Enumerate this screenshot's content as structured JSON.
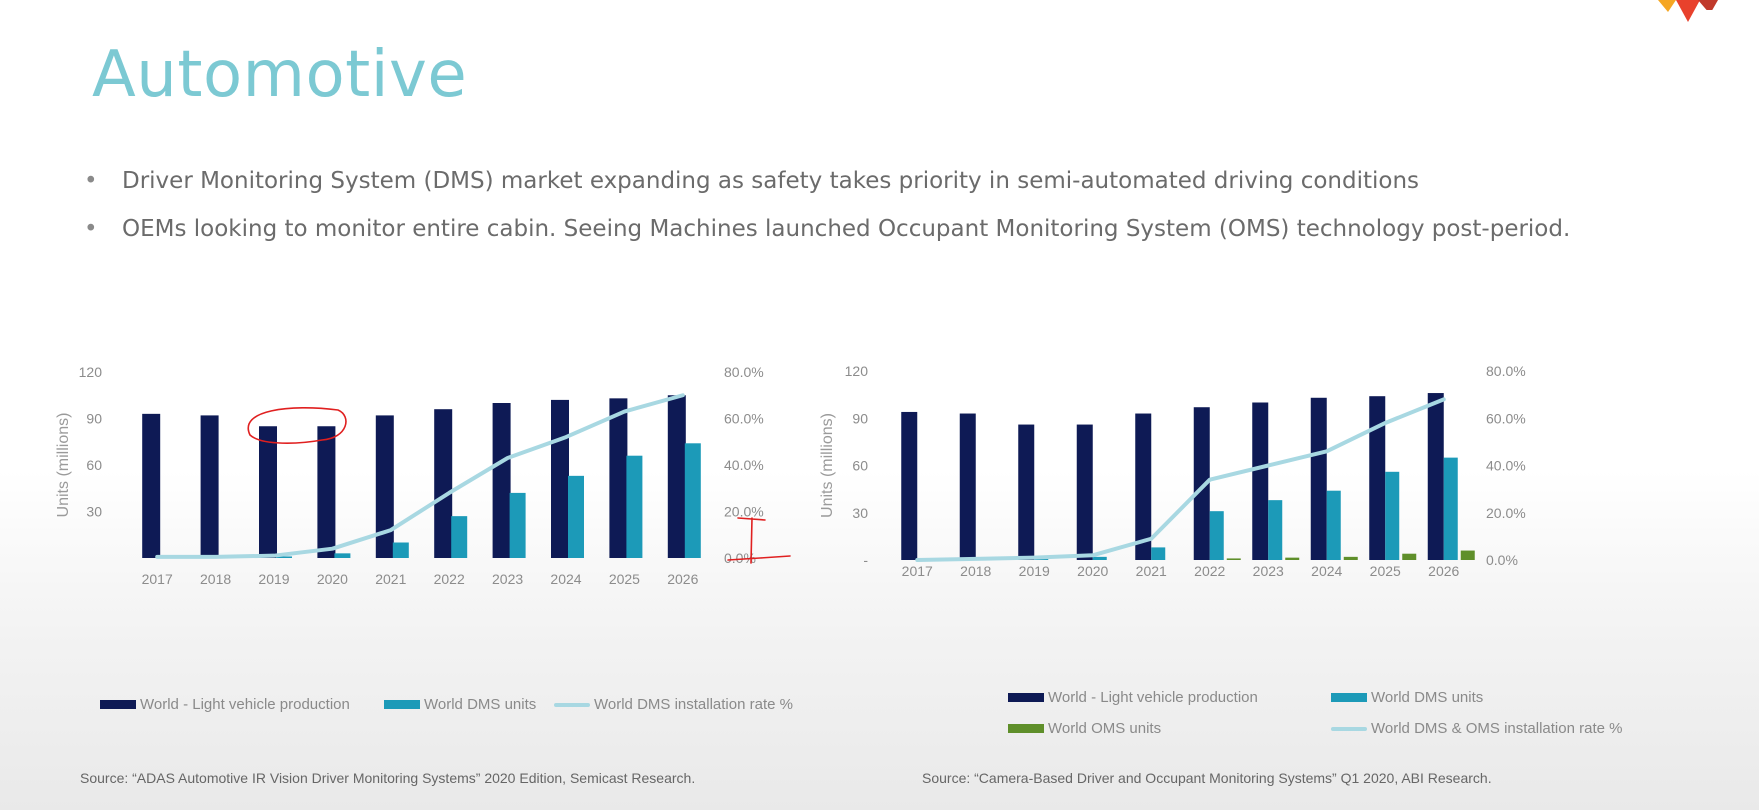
{
  "slide": {
    "title": "Automotive",
    "bullets": [
      "Driver Monitoring System (DMS) market expanding as safety takes priority in semi-automated driving conditions",
      "OEMs looking to monitor entire cabin. Seeing Machines launched Occupant Monitoring System (OMS) technology post-period."
    ]
  },
  "colors": {
    "navy": "#0e1a55",
    "teal": "#1c9ab8",
    "line": "#a8d8e2",
    "green": "#5f8f2a",
    "title": "#7cc9d3",
    "annotation": "#e02020"
  },
  "chart_data": [
    {
      "type": "bar",
      "categories": [
        "2017",
        "2018",
        "2019",
        "2020",
        "2021",
        "2022",
        "2023",
        "2024",
        "2025",
        "2026"
      ],
      "ylabel": "Units (millions)",
      "ylim": [
        0,
        120
      ],
      "yticks": [
        "120",
        "90",
        "60",
        "30",
        ""
      ],
      "y2lim": [
        0,
        80
      ],
      "y2ticks": [
        "80.0%",
        "60.0%",
        "40.0%",
        "20.0%",
        "0.0%"
      ],
      "series": [
        {
          "name": "World - Light vehicle production",
          "kind": "bar",
          "values": [
            93,
            92,
            85,
            85,
            92,
            96,
            100,
            102,
            103,
            105
          ]
        },
        {
          "name": "World DMS units",
          "kind": "bar",
          "values": [
            0,
            0.5,
            1,
            3,
            10,
            27,
            42,
            53,
            66,
            74
          ]
        },
        {
          "name": "World DMS installation rate %",
          "kind": "line",
          "axis": "right",
          "values": [
            0.5,
            0.5,
            1,
            4,
            12,
            28,
            43,
            52,
            63,
            70
          ]
        }
      ],
      "legend_position": "bottom",
      "source": "Source: “ADAS Automotive IR Vision Driver Monitoring Systems” 2020 Edition, Semicast Research."
    },
    {
      "type": "bar",
      "categories": [
        "2017",
        "2018",
        "2019",
        "2020",
        "2021",
        "2022",
        "2023",
        "2024",
        "2025",
        "2026"
      ],
      "ylabel": "Units (millions)",
      "ylim": [
        0,
        120
      ],
      "yticks": [
        "120",
        "90",
        "60",
        "30",
        "-"
      ],
      "y2lim": [
        0,
        80
      ],
      "y2ticks": [
        "80.0%",
        "60.0%",
        "40.0%",
        "20.0%",
        "0.0%"
      ],
      "series": [
        {
          "name": "World - Light vehicle production",
          "kind": "bar",
          "values": [
            94,
            93,
            86,
            86,
            93,
            97,
            100,
            103,
            104,
            106
          ]
        },
        {
          "name": "World DMS units",
          "kind": "bar",
          "values": [
            0,
            0.5,
            1,
            2,
            8,
            31,
            38,
            44,
            56,
            65
          ]
        },
        {
          "name": "World OMS units",
          "kind": "bar",
          "values": [
            0,
            0,
            0,
            0,
            0,
            1,
            1.5,
            2,
            4,
            6
          ]
        },
        {
          "name": "World DMS & OMS installation rate %",
          "kind": "line",
          "axis": "right",
          "values": [
            0,
            0.5,
            1,
            2,
            9,
            34,
            40,
            46,
            58,
            68
          ]
        }
      ],
      "legend_position": "bottom",
      "source": "Source: “Camera-Based Driver and Occupant Monitoring Systems” Q1 2020, ABI Research."
    }
  ]
}
